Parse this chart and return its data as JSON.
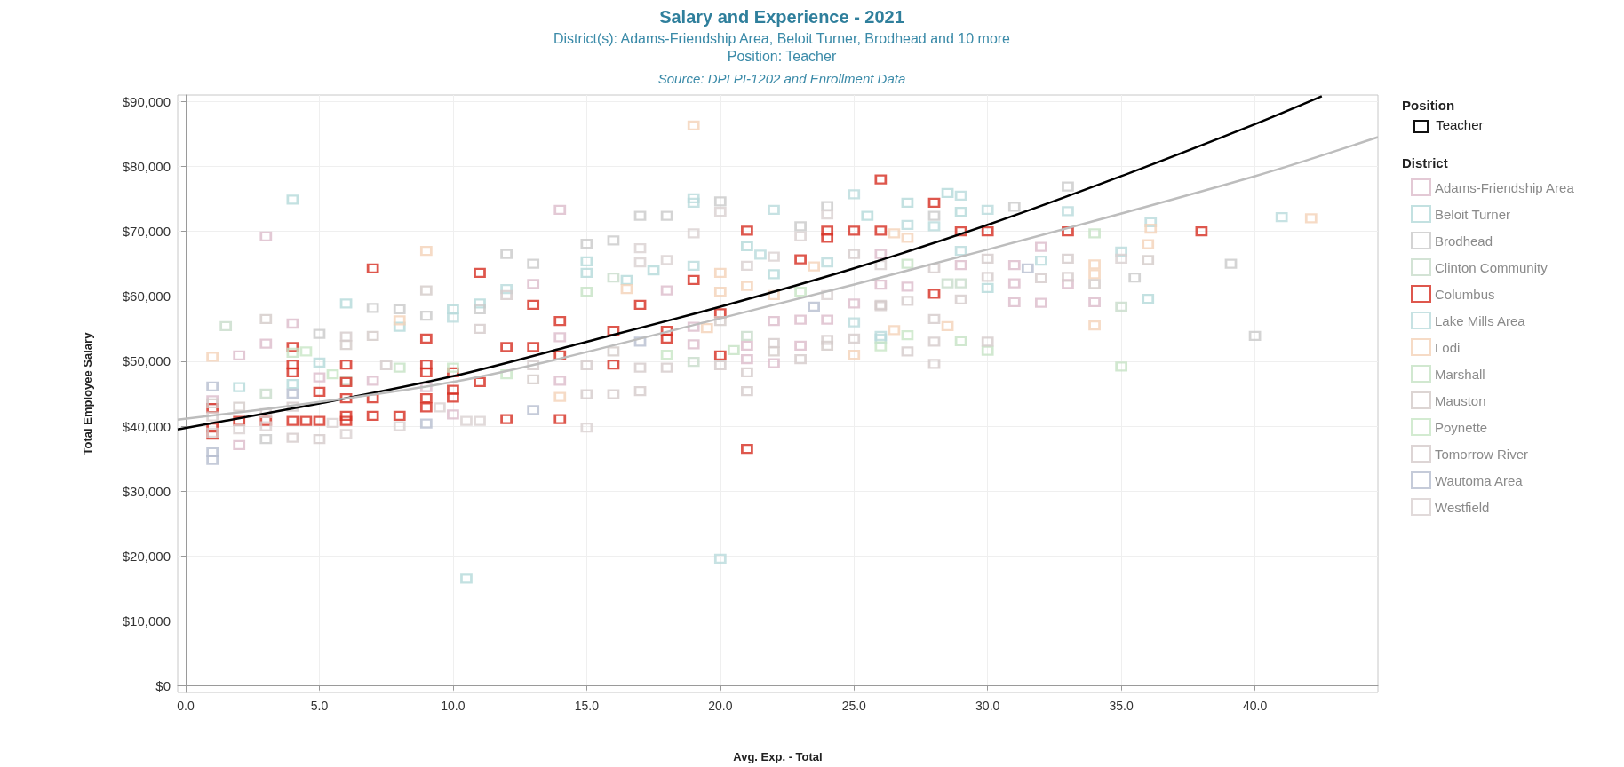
{
  "chart_data": {
    "type": "scatter",
    "title": "Salary and Experience - 2021",
    "subtitle": "District(s): Adams-Friendship Area, Beloit Turner, Brodhead and 10 more\nPosition: Teacher",
    "xlabel": "Avg. Exp. - Total",
    "ylabel": "Total Employee Salary",
    "legend_title": "District",
    "annotations": [
      "Source: DPI PI-1202 and Enrollment Data",
      "Position",
      "Teacher"
    ],
    "xlim": [
      -0.3,
      44.6
    ],
    "ylim": [
      -1000,
      91000
    ],
    "xticks": [
      {
        "value": 0,
        "label": "0.0"
      },
      {
        "value": 5,
        "label": "5.0"
      },
      {
        "value": 10,
        "label": "10.0"
      },
      {
        "value": 15,
        "label": "15.0"
      },
      {
        "value": 20,
        "label": "20.0"
      },
      {
        "value": 25,
        "label": "25.0"
      },
      {
        "value": 30,
        "label": "30.0"
      },
      {
        "value": 35,
        "label": "35.0"
      },
      {
        "value": 40,
        "label": "40.0"
      }
    ],
    "yticks": [
      {
        "value": 0,
        "label": "$0"
      },
      {
        "value": 10000,
        "label": "$10,000"
      },
      {
        "value": 20000,
        "label": "$20,000"
      },
      {
        "value": 30000,
        "label": "$30,000"
      },
      {
        "value": 40000,
        "label": "$40,000"
      },
      {
        "value": 50000,
        "label": "$50,000"
      },
      {
        "value": 60000,
        "label": "$60,000"
      },
      {
        "value": 70000,
        "label": "$70,000"
      },
      {
        "value": 80000,
        "label": "$80,000"
      },
      {
        "value": 90000,
        "label": "$90,000"
      }
    ],
    "grid": true,
    "legend": "right",
    "marker": "square",
    "series": [
      {
        "name": "Adams-Friendship Area",
        "color": "#dcbccb",
        "x": [
          3,
          2,
          3,
          4,
          10,
          2,
          13,
          18,
          14,
          14,
          14,
          19,
          19,
          21,
          21,
          22,
          22,
          23,
          23,
          24,
          25,
          26,
          26,
          29,
          31,
          31,
          31,
          32,
          32,
          33,
          34,
          27,
          1,
          5,
          7,
          9
        ],
        "values": [
          69200,
          50900,
          52700,
          55800,
          41800,
          37100,
          61900,
          60900,
          73300,
          47000,
          53700,
          52600,
          55300,
          50300,
          52400,
          49700,
          56200,
          52400,
          56400,
          56400,
          58900,
          66500,
          61800,
          64800,
          64800,
          62000,
          59100,
          67600,
          59000,
          61900,
          59100,
          61500,
          44000,
          47500,
          47000,
          46000
        ]
      },
      {
        "name": "Beloit Turner",
        "color": "#b4d9d9",
        "x": [
          4,
          6,
          8,
          10,
          11,
          15,
          15,
          16.5,
          17.5,
          21,
          22,
          25.5,
          27,
          28.5,
          29,
          30,
          36,
          10.5,
          2,
          4,
          5
        ],
        "values": [
          74900,
          58900,
          55300,
          58000,
          58900,
          65400,
          63600,
          62500,
          64000,
          67700,
          63400,
          72400,
          74400,
          75900,
          73000,
          61300,
          59600,
          16500,
          46000,
          46500,
          49800
        ]
      },
      {
        "name": "Brodhead",
        "color": "#c9c9c9",
        "x": [
          12,
          5,
          7,
          8,
          9,
          11,
          13,
          15,
          16,
          17,
          18,
          20,
          24,
          23,
          28,
          31,
          33,
          39.1,
          40,
          35.5,
          3
        ],
        "values": [
          66500,
          54200,
          58200,
          58000,
          57000,
          58000,
          65000,
          68100,
          68600,
          72400,
          72400,
          74600,
          73900,
          70800,
          72400,
          73800,
          76900,
          65000,
          53900,
          62900,
          38000
        ]
      },
      {
        "name": "Clinton Community",
        "color": "#c8dcca",
        "x": [
          1.5,
          16,
          19,
          21,
          29,
          28.5,
          35,
          6,
          3
        ],
        "values": [
          55400,
          62900,
          49900,
          53900,
          62000,
          62000,
          58400,
          47000,
          45000
        ]
      },
      {
        "name": "Columbus",
        "color": "#d62d20",
        "x": [
          1,
          1,
          1,
          2,
          3,
          4,
          4,
          4,
          4,
          4.5,
          5,
          5,
          6,
          6,
          6,
          6,
          6,
          7,
          7,
          7,
          8,
          9,
          9,
          9,
          9,
          9,
          10,
          10,
          10,
          11,
          11,
          12,
          12,
          13,
          13,
          14,
          14,
          14,
          16,
          16,
          17,
          18,
          18,
          19,
          20,
          20,
          21,
          21,
          23,
          24,
          24,
          25,
          26,
          26,
          28,
          28,
          29,
          30,
          33,
          38
        ],
        "values": [
          42800,
          39800,
          38700,
          40800,
          40800,
          52200,
          49500,
          48300,
          40800,
          40800,
          45300,
          40800,
          49500,
          46800,
          44300,
          41600,
          40800,
          64300,
          44300,
          41600,
          41600,
          53500,
          49500,
          48300,
          44300,
          42900,
          48300,
          45600,
          44400,
          63600,
          46800,
          52200,
          41100,
          52200,
          58700,
          56200,
          50900,
          41100,
          54700,
          49500,
          58700,
          54700,
          53500,
          62500,
          57400,
          50900,
          70100,
          36500,
          65700,
          70100,
          69000,
          70100,
          78000,
          70100,
          74400,
          60400,
          70000,
          70000,
          70000,
          70000
        ]
      },
      {
        "name": "Lake Mills Area",
        "color": "#b9dbdc",
        "x": [
          10,
          12,
          19,
          19,
          19,
          21.5,
          22,
          25,
          24,
          25,
          26,
          26,
          27,
          28,
          29,
          30,
          33,
          32,
          35,
          36.1,
          41,
          20,
          29
        ],
        "values": [
          56700,
          61100,
          75100,
          74400,
          64700,
          66400,
          73300,
          75700,
          65200,
          56000,
          53900,
          53500,
          71000,
          70800,
          75500,
          73300,
          73100,
          65500,
          66900,
          71400,
          72200,
          19600,
          67000
        ]
      },
      {
        "name": "Lodi",
        "color": "#f4d2b8",
        "x": [
          1,
          9,
          8,
          16.5,
          19,
          20,
          20,
          21,
          22,
          23.5,
          25,
          14,
          19.5,
          26.5,
          26.5,
          27,
          28.5,
          34,
          34,
          34,
          36.1,
          36,
          42.1
        ],
        "values": [
          50700,
          67000,
          56300,
          61100,
          86300,
          63600,
          60700,
          61600,
          60200,
          64600,
          51000,
          44500,
          55100,
          69700,
          54800,
          69000,
          55400,
          64900,
          63400,
          55500,
          70400,
          68000,
          72000
        ]
      },
      {
        "name": "Marshall",
        "color": "#c6e2c4",
        "x": [
          34,
          35,
          29,
          30,
          27,
          20.5,
          15,
          4,
          8
        ],
        "values": [
          69700,
          49200,
          53100,
          51600,
          65000,
          51700,
          60700,
          51300,
          49000
        ]
      },
      {
        "name": "Mauston",
        "color": "#d3cac8",
        "x": [
          3,
          9,
          13,
          24,
          34,
          36,
          7,
          6,
          16,
          22,
          20,
          1,
          2
        ],
        "values": [
          56500,
          60900,
          47200,
          52400,
          61900,
          65600,
          53900,
          52500,
          51500,
          51500,
          56200,
          43500,
          43000
        ]
      },
      {
        "name": "Poynette",
        "color": "#c8e6c5",
        "x": [
          4.5,
          18,
          23,
          26,
          27,
          10,
          5.5,
          12
        ],
        "values": [
          51500,
          51000,
          60700,
          52300,
          54000,
          49000,
          48000,
          48000
        ]
      },
      {
        "name": "Tomorrow River",
        "color": "#d4cbca",
        "x": [
          6,
          13,
          15,
          15,
          16,
          17,
          17,
          18,
          20,
          21,
          21,
          22,
          23,
          24,
          25,
          26,
          26,
          27,
          27,
          28,
          28,
          28,
          28,
          29,
          30,
          30,
          30,
          33,
          33,
          32,
          3,
          4,
          1,
          5,
          4,
          7.5,
          11,
          12,
          25
        ],
        "values": [
          53800,
          49400,
          44900,
          49400,
          44900,
          45400,
          49000,
          49000,
          49400,
          45400,
          48300,
          52800,
          50300,
          53300,
          53500,
          58700,
          58500,
          59300,
          51500,
          64300,
          56500,
          53000,
          49600,
          59500,
          65800,
          63000,
          53000,
          65800,
          63000,
          62800,
          42000,
          43000,
          41500,
          38000,
          38200,
          49400,
          55000,
          60200,
          66500
        ]
      },
      {
        "name": "Wautoma Area",
        "color": "#b7bed0",
        "x": [
          1,
          1,
          1,
          9,
          13,
          17,
          23.5,
          31.5,
          4
        ],
        "values": [
          34800,
          36000,
          46100,
          40400,
          42500,
          53000,
          58400,
          64300,
          45000
        ]
      },
      {
        "name": "Westfield",
        "color": "#dad1d1",
        "x": [
          9.5,
          10.5,
          11,
          5.5,
          15,
          17,
          17,
          18,
          19,
          20,
          24,
          24,
          23,
          21,
          22,
          35,
          26,
          1,
          2,
          3,
          6,
          8
        ],
        "values": [
          42900,
          40800,
          40800,
          40500,
          39800,
          67400,
          65200,
          65600,
          69700,
          73000,
          72600,
          60200,
          69200,
          64700,
          66100,
          65800,
          64800,
          39000,
          39500,
          40000,
          38800,
          40000
        ]
      },
      {
        "type": "line",
        "marker": "none",
        "color": "#000000",
        "x": [
          -0.3,
          5,
          10,
          15,
          20,
          25,
          30,
          35,
          40,
          42.5
        ],
        "values": [
          39500,
          43500,
          47700,
          53000,
          58400,
          64300,
          71000,
          78500,
          86500,
          90800
        ]
      },
      {
        "type": "line",
        "marker": "none",
        "color": "#bdbdbd",
        "x": [
          -0.3,
          10,
          20,
          30,
          40,
          44.6
        ],
        "values": [
          41000,
          46800,
          56600,
          67200,
          78500,
          84500
        ]
      }
    ]
  }
}
